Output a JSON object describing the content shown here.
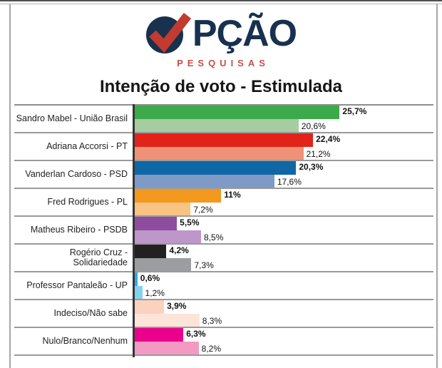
{
  "logo": {
    "full_brand": "OPÇÃO",
    "brand_text_after_mark": "PÇÃO",
    "subtitle": "PESQUISAS",
    "navy": "#17314F",
    "check_red": "#C23A30",
    "subtitle_red": "#C65049",
    "mark": "checkmark-in-circle"
  },
  "title": "Intenção de voto - Estimulada",
  "chart_data": {
    "type": "bar",
    "orientation": "horizontal",
    "unit": "percent",
    "title": "Intenção de voto - Estimulada",
    "xlabel": "",
    "ylabel": "",
    "xlim": [
      0,
      37
    ],
    "grid": false,
    "legend": "none",
    "categories": [
      "Sandro Mabel - União Brasil",
      "Adriana Accorsi - PT",
      "Vanderlan Cardoso - PSD",
      "Fred Rodrigues - PL",
      "Matheus Ribeiro - PSDB",
      "Rogério Cruz - Solidariedade",
      "Professor Pantaleão - UP",
      "Indeciso/Não sabe",
      "Nulo/Branco/Nenhum"
    ],
    "series": [
      {
        "name": "primary (dark bar, bold label)",
        "values": [
          25.7,
          22.4,
          20.3,
          11,
          5.5,
          4.2,
          0.6,
          3.9,
          6.3
        ]
      },
      {
        "name": "secondary (light bar)",
        "values": [
          20.6,
          21.2,
          17.6,
          7.2,
          8.5,
          7.3,
          1.2,
          8.3,
          8.2
        ]
      }
    ],
    "rows": [
      {
        "label": "Sandro Mabel - União Brasil",
        "dark": {
          "value": 25.7,
          "display": "25,7%",
          "color": "#3CA94A"
        },
        "light": {
          "value": 20.6,
          "display": "20,6%",
          "color": "#A5CDA1"
        }
      },
      {
        "label": "Adriana Accorsi - PT",
        "dark": {
          "value": 22.4,
          "display": "22,4%",
          "color": "#E2231A"
        },
        "light": {
          "value": 21.2,
          "display": "21,2%",
          "color": "#EF9277"
        }
      },
      {
        "label": "Vanderlan Cardoso - PSD",
        "dark": {
          "value": 20.3,
          "display": "20,3%",
          "color": "#1067A5"
        },
        "light": {
          "value": 17.6,
          "display": "17,6%",
          "color": "#7E9AC7"
        }
      },
      {
        "label": "Fred Rodrigues - PL",
        "dark": {
          "value": 11,
          "display": "11%",
          "color": "#F2991E"
        },
        "light": {
          "value": 7.2,
          "display": "7,2%",
          "color": "#F8C383"
        }
      },
      {
        "label": "Matheus Ribeiro - PSDB",
        "dark": {
          "value": 5.5,
          "display": "5,5%",
          "color": "#8D4C9E"
        },
        "light": {
          "value": 8.5,
          "display": "8,5%",
          "color": "#BD96CA"
        }
      },
      {
        "label": "Rogério Cruz - Solidariedade",
        "dark": {
          "value": 4.2,
          "display": "4,2%",
          "color": "#232021"
        },
        "light": {
          "value": 7.3,
          "display": "7,3%",
          "color": "#9B9DA0"
        }
      },
      {
        "label": "Professor Pantaleão - UP",
        "dark": {
          "value": 0.6,
          "display": "0,6%",
          "color": "#2EACE3"
        },
        "light": {
          "value": 1.2,
          "display": "1,2%",
          "color": "#84D2F0"
        }
      },
      {
        "label": "Indeciso/Não sabe",
        "dark": {
          "value": 3.9,
          "display": "3,9%",
          "color": "#FAD2BE"
        },
        "light": {
          "value": 8.3,
          "display": "8,3%",
          "color": "#FCE4D9"
        }
      },
      {
        "label": "Nulo/Branco/Nenhum",
        "dark": {
          "value": 6.3,
          "display": "6,3%",
          "color": "#EB008C"
        },
        "light": {
          "value": 8.2,
          "display": "8,2%",
          "color": "#F29AC2"
        }
      }
    ]
  }
}
